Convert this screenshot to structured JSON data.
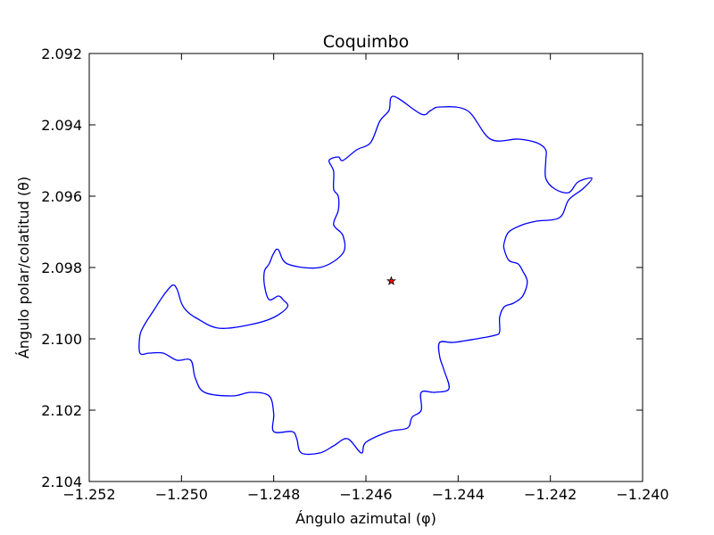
{
  "chart_data": {
    "type": "line",
    "title": "Coquimbo",
    "xlabel": "Ángulo azimutal (φ)",
    "ylabel": "Ángulo polar/colatitud (θ)",
    "xlim": [
      -1.252,
      -1.24
    ],
    "ylim": [
      2.104,
      2.092
    ],
    "y_inverted": true,
    "grid": false,
    "xticks": [
      "−1.252",
      "−1.250",
      "−1.248",
      "−1.246",
      "−1.244",
      "−1.242",
      "−1.240"
    ],
    "yticks": [
      "2.092",
      "2.094",
      "2.096",
      "2.098",
      "2.100",
      "2.102",
      "2.104"
    ],
    "series": [
      {
        "color": "#0000ff",
        "closed": true,
        "points": [
          [
            -1.2454,
            2.0932
          ],
          [
            -1.2448,
            2.0937
          ],
          [
            -1.2446,
            2.0936
          ],
          [
            -1.2444,
            2.0935
          ],
          [
            -1.2438,
            2.0936
          ],
          [
            -1.2433,
            2.0944
          ],
          [
            -1.2427,
            2.0944
          ],
          [
            -1.2423,
            2.0945
          ],
          [
            -1.2421,
            2.0947
          ],
          [
            -1.2421,
            2.095
          ],
          [
            -1.2421,
            2.0955
          ],
          [
            -1.2419,
            2.0958
          ],
          [
            -1.2416,
            2.0959
          ],
          [
            -1.2414,
            2.0956
          ],
          [
            -1.2411,
            2.0955
          ],
          [
            -1.2413,
            2.0958
          ],
          [
            -1.2416,
            2.0961
          ],
          [
            -1.2418,
            2.0966
          ],
          [
            -1.2423,
            2.0967
          ],
          [
            -1.2426,
            2.0968
          ],
          [
            -1.2429,
            2.097
          ],
          [
            -1.243,
            2.0973
          ],
          [
            -1.243,
            2.0975
          ],
          [
            -1.2429,
            2.0978
          ],
          [
            -1.2427,
            2.0979
          ],
          [
            -1.2426,
            2.0981
          ],
          [
            -1.2425,
            2.0984
          ],
          [
            -1.2426,
            2.0988
          ],
          [
            -1.2428,
            2.099
          ],
          [
            -1.243,
            2.0991
          ],
          [
            -1.2431,
            2.0994
          ],
          [
            -1.2431,
            2.0998
          ],
          [
            -1.2432,
            2.0999
          ],
          [
            -1.2436,
            2.1
          ],
          [
            -1.2441,
            2.1001
          ],
          [
            -1.2444,
            2.1001
          ],
          [
            -1.2444,
            2.1005
          ],
          [
            -1.2443,
            2.1009
          ],
          [
            -1.2442,
            2.1014
          ],
          [
            -1.2445,
            2.1015
          ],
          [
            -1.2448,
            2.1015
          ],
          [
            -1.2448,
            2.102
          ],
          [
            -1.245,
            2.1022
          ],
          [
            -1.2451,
            2.1025
          ],
          [
            -1.2455,
            2.1026
          ],
          [
            -1.246,
            2.1029
          ],
          [
            -1.2461,
            2.1032
          ],
          [
            -1.2464,
            2.1028
          ],
          [
            -1.2467,
            2.103
          ],
          [
            -1.247,
            2.1032
          ],
          [
            -1.2474,
            2.1032
          ],
          [
            -1.2475,
            2.1028
          ],
          [
            -1.2476,
            2.1026
          ],
          [
            -1.248,
            2.1026
          ],
          [
            -1.248,
            2.1021
          ],
          [
            -1.2481,
            2.1016
          ],
          [
            -1.2485,
            2.1015
          ],
          [
            -1.2489,
            2.1016
          ],
          [
            -1.2495,
            2.1015
          ],
          [
            -1.2497,
            2.1011
          ],
          [
            -1.2498,
            2.1006
          ],
          [
            -1.2501,
            2.1006
          ],
          [
            -1.2504,
            2.1004
          ],
          [
            -1.2507,
            2.1004
          ],
          [
            -1.2509,
            2.1004
          ],
          [
            -1.2509,
            2.0999
          ],
          [
            -1.2508,
            2.0996
          ],
          [
            -1.2506,
            2.0992
          ],
          [
            -1.2504,
            2.0988
          ],
          [
            -1.2502,
            2.0985
          ],
          [
            -1.2501,
            2.0986
          ],
          [
            -1.25,
            2.099
          ],
          [
            -1.2499,
            2.0992
          ],
          [
            -1.2497,
            2.0994
          ],
          [
            -1.2492,
            2.0997
          ],
          [
            -1.2485,
            2.0996
          ],
          [
            -1.248,
            2.0994
          ],
          [
            -1.2477,
            2.0991
          ],
          [
            -1.2478,
            2.0989
          ],
          [
            -1.2479,
            2.0988
          ],
          [
            -1.2481,
            2.0989
          ],
          [
            -1.2482,
            2.0985
          ],
          [
            -1.2482,
            2.0981
          ],
          [
            -1.2481,
            2.0979
          ],
          [
            -1.248,
            2.0976
          ],
          [
            -1.2479,
            2.0975
          ],
          [
            -1.2477,
            2.0979
          ],
          [
            -1.247,
            2.098
          ],
          [
            -1.2465,
            2.0976
          ],
          [
            -1.2465,
            2.0971
          ],
          [
            -1.2467,
            2.0968
          ],
          [
            -1.2466,
            2.0964
          ],
          [
            -1.2466,
            2.096
          ],
          [
            -1.2467,
            2.0958
          ],
          [
            -1.2467,
            2.0953
          ],
          [
            -1.2468,
            2.095
          ],
          [
            -1.2466,
            2.0949
          ],
          [
            -1.2465,
            2.095
          ],
          [
            -1.2462,
            2.0947
          ],
          [
            -1.2459,
            2.0945
          ],
          [
            -1.2457,
            2.0939
          ],
          [
            -1.2455,
            2.0936
          ]
        ]
      }
    ],
    "marker": {
      "x": -1.24545,
      "y": 2.09838,
      "shape": "star",
      "color": "#ff0000"
    }
  }
}
